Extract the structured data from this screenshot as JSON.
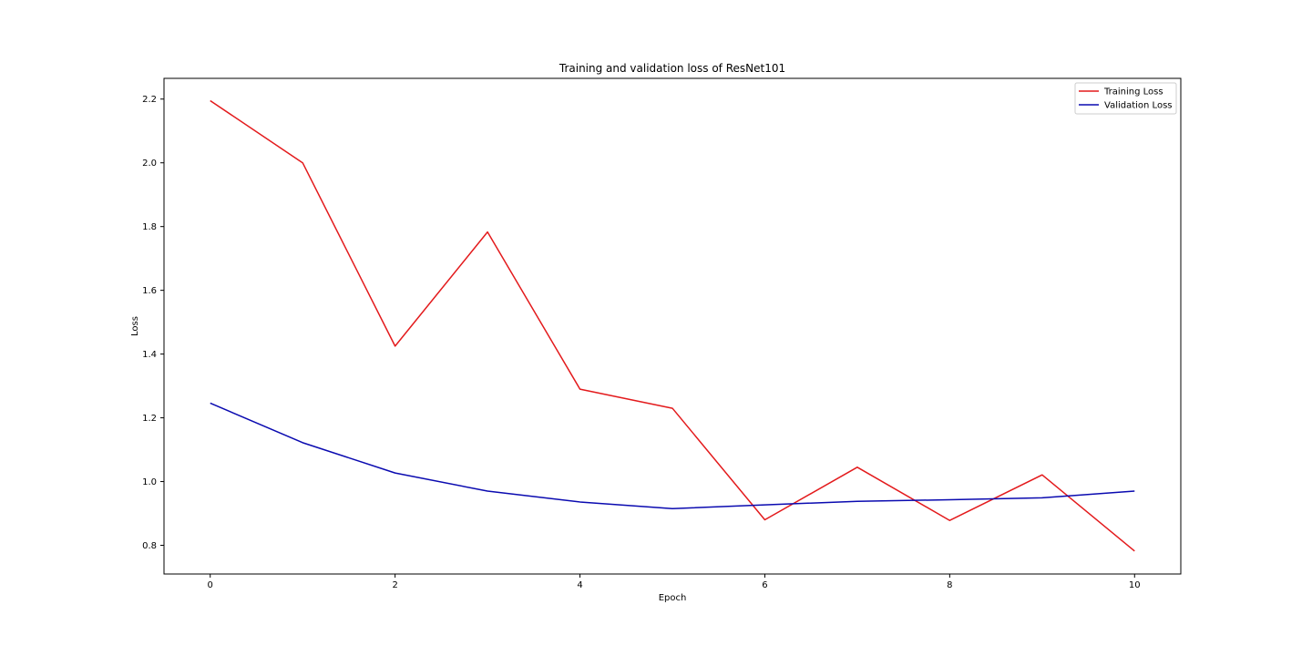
{
  "chart_data": {
    "type": "line",
    "title": "Training and validation loss of ResNet101",
    "xlabel": "Epoch",
    "ylabel": "Loss",
    "x": [
      0,
      1,
      2,
      3,
      4,
      5,
      6,
      7,
      8,
      9,
      10
    ],
    "xlim": [
      -0.5,
      10.5
    ],
    "ylim": [
      0.71,
      2.265
    ],
    "xticks": [
      0,
      2,
      4,
      6,
      8,
      10
    ],
    "yticks": [
      0.8,
      1.0,
      1.2,
      1.4,
      1.6,
      1.8,
      2.0,
      2.2
    ],
    "ytick_labels": [
      "0.8",
      "1.0",
      "1.2",
      "1.4",
      "1.6",
      "1.8",
      "2.0",
      "2.2"
    ],
    "grid": false,
    "legend_position": "top-right",
    "series": [
      {
        "name": "Training Loss",
        "color": "#e31a1c",
        "values": [
          2.195,
          2.0,
          1.425,
          1.783,
          1.29,
          1.23,
          0.88,
          1.045,
          0.878,
          1.021,
          0.782
        ]
      },
      {
        "name": "Validation Loss",
        "color": "#0a0ab0",
        "values": [
          1.246,
          1.122,
          1.027,
          0.97,
          0.936,
          0.915,
          0.927,
          0.938,
          0.943,
          0.949,
          0.97
        ]
      }
    ]
  }
}
